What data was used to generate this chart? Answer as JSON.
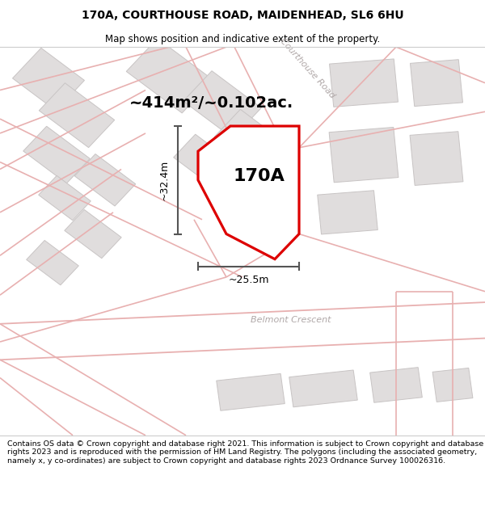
{
  "title_line1": "170A, COURTHOUSE ROAD, MAIDENHEAD, SL6 6HU",
  "title_line2": "Map shows position and indicative extent of the property.",
  "area_label": "~414m²/~0.102ac.",
  "property_label": "170A",
  "dim_vertical": "~32.4m",
  "dim_horizontal": "~25.5m",
  "street1": "Courthouse Road",
  "street2": "Belmont Crescent",
  "footer": "Contains OS data © Crown copyright and database right 2021. This information is subject to Crown copyright and database rights 2023 and is reproduced with the permission of HM Land Registry. The polygons (including the associated geometry, namely x, y co-ordinates) are subject to Crown copyright and database rights 2023 Ordnance Survey 100026316.",
  "map_bg": "#f2f0f0",
  "red_line": "#dd0000",
  "pink_road": "#e8b0b0",
  "building_fill": "#e0dddd",
  "building_edge": "#c8c4c4",
  "white": "#ffffff",
  "dim_line_color": "#555555",
  "road_outline_color": "#ccb8b8",
  "title_fontsize": 10,
  "subtitle_fontsize": 8.5,
  "area_fontsize": 14,
  "label_fontsize": 16,
  "dim_fontsize": 9,
  "street_fontsize": 8,
  "footer_fontsize": 6.8
}
